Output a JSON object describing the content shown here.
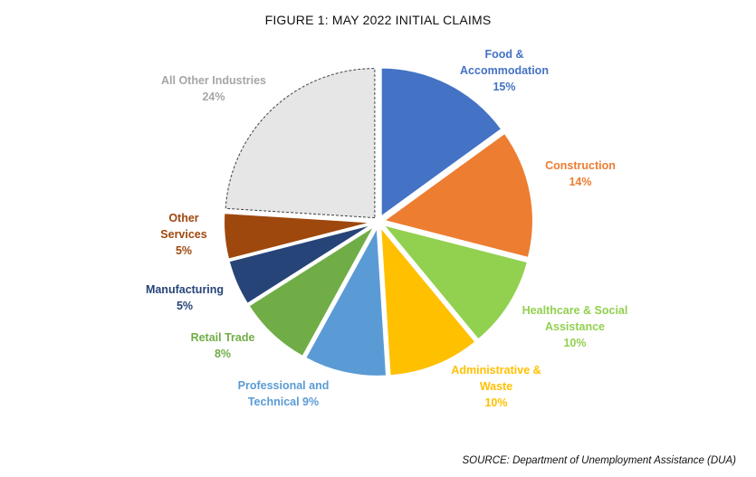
{
  "chart_data": {
    "type": "pie",
    "title": "FIGURE 1: MAY 2022 INITIAL CLAIMS",
    "slices": [
      {
        "name": "Food & Accommodation",
        "value": 15,
        "label_lines": [
          "Food &",
          "Accommodation",
          "15%"
        ],
        "color": "#4472C4",
        "label_color": "#4472C4"
      },
      {
        "name": "Construction",
        "value": 14,
        "label_lines": [
          "Construction",
          "14%"
        ],
        "color": "#ED7D31",
        "label_color": "#ED7D31"
      },
      {
        "name": "Healthcare & Social Assistance",
        "value": 10,
        "label_lines": [
          "Healthcare & Social",
          "Assistance",
          "10%"
        ],
        "color": "#92D050",
        "label_color": "#92D050"
      },
      {
        "name": "Administrative & Waste",
        "value": 10,
        "label_lines": [
          "Administrative &",
          "Waste",
          "10%"
        ],
        "color": "#FFC000",
        "label_color": "#FFC000"
      },
      {
        "name": "Professional and Technical",
        "value": 9,
        "label_lines": [
          "Professional and",
          "Technical 9%"
        ],
        "color": "#5B9BD5",
        "label_color": "#5B9BD5"
      },
      {
        "name": "Retail Trade",
        "value": 8,
        "label_lines": [
          "Retail Trade",
          "8%"
        ],
        "color": "#70AD47",
        "label_color": "#70AD47"
      },
      {
        "name": "Manufacturing",
        "value": 5,
        "label_lines": [
          "Manufacturing",
          "5%"
        ],
        "color": "#264478",
        "label_color": "#264478"
      },
      {
        "name": "Other Services",
        "value": 5,
        "label_lines": [
          "Other",
          "Services",
          "5%"
        ],
        "color": "#9E480E",
        "label_color": "#9E480E"
      },
      {
        "name": "All Other Industries",
        "value": 24,
        "label_lines": [
          "All Other Industries",
          "24%"
        ],
        "color": "#E7E6E6",
        "label_color": "#A6A6A6"
      }
    ],
    "source": "SOURCE: Department of Unemployment Assistance (DUA)"
  }
}
